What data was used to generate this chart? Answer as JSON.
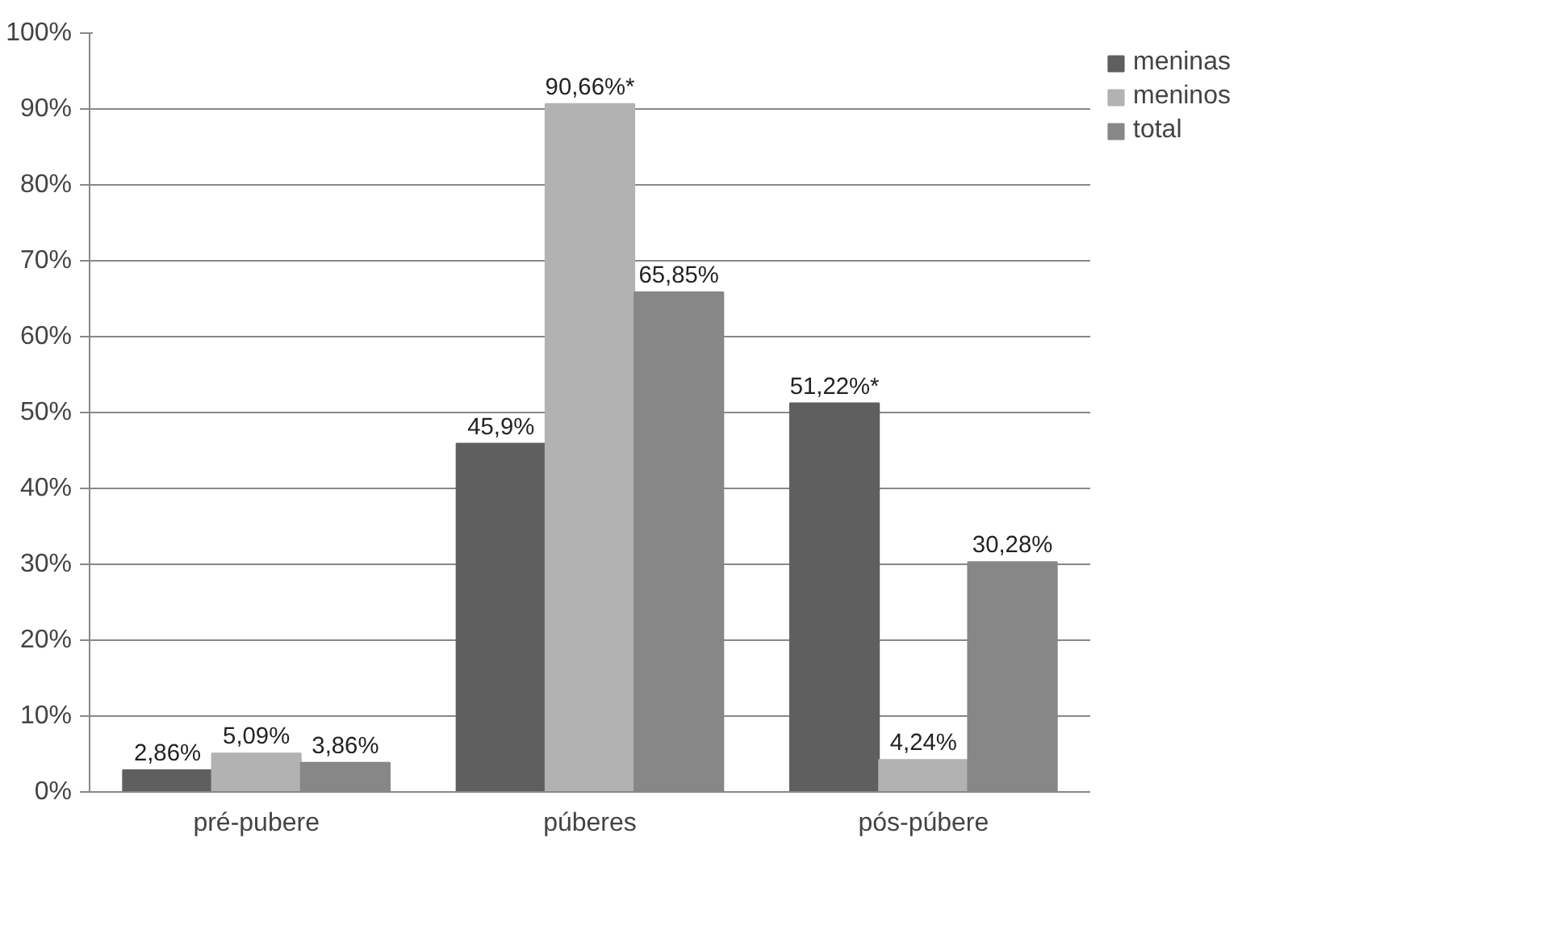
{
  "chart_data": {
    "type": "bar",
    "categories": [
      "pré-pubere",
      "púberes",
      "pós-púbere"
    ],
    "series": [
      {
        "name": "meninas",
        "color": "#5f5f5f",
        "values": [
          2.86,
          45.9,
          51.22
        ],
        "value_labels": [
          "2,86%",
          "45,9%",
          "51,22%*"
        ]
      },
      {
        "name": "meninos",
        "color": "#b2b2b2",
        "values": [
          5.09,
          90.66,
          4.24
        ],
        "value_labels": [
          "5,09%",
          "90,66%*",
          "4,24%"
        ]
      },
      {
        "name": "total",
        "color": "#878787",
        "values": [
          3.86,
          65.85,
          30.28
        ],
        "value_labels": [
          "3,86%",
          "65,85%",
          "30,28%"
        ]
      }
    ],
    "ylim": [
      0,
      100
    ],
    "yticks": [
      {
        "value": 0,
        "label": "0%"
      },
      {
        "value": 10,
        "label": "10%"
      },
      {
        "value": 20,
        "label": "20%"
      },
      {
        "value": 30,
        "label": "30%"
      },
      {
        "value": 40,
        "label": "40%"
      },
      {
        "value": 50,
        "label": "50%"
      },
      {
        "value": 60,
        "label": "60%"
      },
      {
        "value": 70,
        "label": "70%"
      },
      {
        "value": 80,
        "label": "80%"
      },
      {
        "value": 90,
        "label": "90%"
      },
      {
        "value": 100,
        "label": "100%"
      }
    ],
    "grid": "y",
    "legend": "right"
  }
}
